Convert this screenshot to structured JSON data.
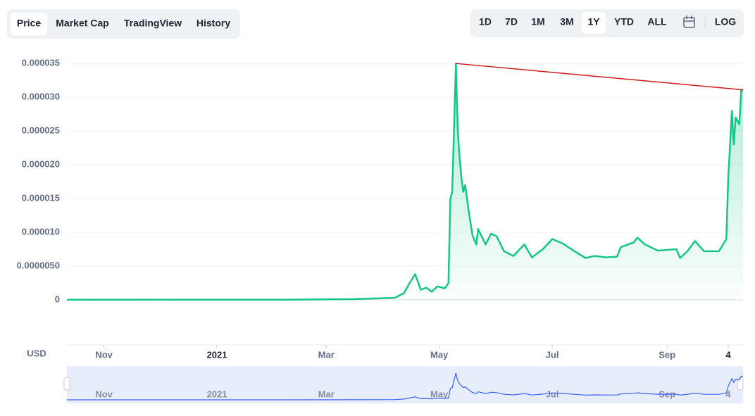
{
  "tabs": [
    "Price",
    "Market Cap",
    "TradingView",
    "History"
  ],
  "active_tab": "Price",
  "ranges": [
    "1D",
    "7D",
    "1M",
    "3M",
    "1Y",
    "YTD",
    "ALL"
  ],
  "active_range": "1Y",
  "log_button": "LOG",
  "chart_data": {
    "type": "area",
    "currency": "USD",
    "color": "#16c784",
    "navigator_color": "#3861fb",
    "x": [
      0,
      60,
      120,
      154,
      177,
      182,
      185,
      188,
      191,
      194,
      197,
      200,
      204,
      206,
      207,
      208,
      210,
      211,
      212,
      213,
      214,
      215,
      217,
      219,
      221,
      222,
      226,
      229,
      232,
      236,
      241,
      247,
      251,
      257,
      262,
      268,
      274,
      280,
      285,
      291,
      297,
      299,
      306,
      308,
      312,
      319,
      329,
      331,
      335,
      339,
      344,
      352,
      356,
      357,
      359,
      360,
      361,
      363,
      364,
      365
    ],
    "values": [
      1e-08,
      2e-08,
      3e-08,
      1e-07,
      3e-07,
      1e-06,
      2.5e-06,
      3.8e-06,
      1.5e-06,
      1.8e-06,
      1.2e-06,
      2e-06,
      1.7e-06,
      2.5e-06,
      1.5e-05,
      1.6e-05,
      3.5e-05,
      2.5e-05,
      2.1e-05,
      1.8e-05,
      1.6e-05,
      1.7e-05,
      1.3e-05,
      9.5e-06,
      8.2e-06,
      1.05e-05,
      8.2e-06,
      9.8e-06,
      9.4e-06,
      7.2e-06,
      6.5e-06,
      8.2e-06,
      6.3e-06,
      7.5e-06,
      9e-06,
      8.3e-06,
      7.2e-06,
      6.2e-06,
      6.5e-06,
      6.3e-06,
      6.4e-06,
      7.8e-06,
      8.5e-06,
      9.2e-06,
      8.2e-06,
      7.3e-06,
      7.5e-06,
      6.2e-06,
      7.2e-06,
      8.7e-06,
      7.2e-06,
      7.2e-06,
      9e-06,
      1.8e-05,
      2.8e-05,
      2.3e-05,
      2.7e-05,
      2.6e-05,
      3.1e-05,
      3.11e-05
    ],
    "trend_line": {
      "color": "#d11a1a",
      "x": [
        210,
        365
      ],
      "values": [
        3.5e-05,
        3.11e-05
      ]
    },
    "xlim": [
      0,
      365
    ],
    "xticks": [
      {
        "value": 20,
        "label": "Nov"
      },
      {
        "value": 81,
        "label": "2021"
      },
      {
        "value": 140,
        "label": "Mar"
      },
      {
        "value": 201,
        "label": "May"
      },
      {
        "value": 262,
        "label": "Jul"
      },
      {
        "value": 324,
        "label": "Sep"
      },
      {
        "value": 357,
        "label": "4"
      }
    ],
    "ylim": [
      0,
      3.7e-05
    ],
    "yticks": [
      0,
      {
        "value": 5e-06,
        "label": "0.0000050"
      },
      {
        "value": 1e-05,
        "label": "0.000010"
      },
      1.5e-05,
      {
        "value": 2e-05,
        "label": "0.000020"
      },
      2.5e-05,
      {
        "value": 3e-05,
        "label": "0.000030"
      },
      3.5e-05
    ],
    "grid": true
  }
}
